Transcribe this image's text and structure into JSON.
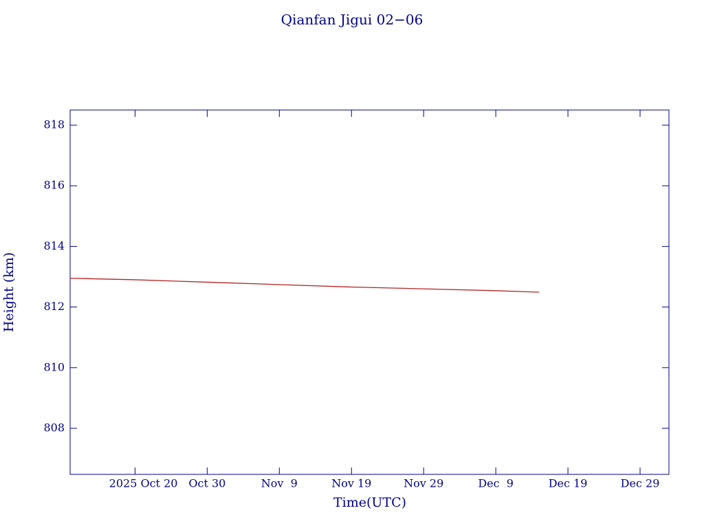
{
  "chart_data": {
    "type": "line",
    "title": "Qianfan Jigui 02−06",
    "x_label": "Time(UTC)",
    "y_label": "Height (km)",
    "x": [
      "2025-10-11",
      "2025-10-20",
      "2025-10-30",
      "2025-11-09",
      "2025-11-19",
      "2025-11-29",
      "2025-12-09",
      "2025-12-15"
    ],
    "series": [
      {
        "name": "Height",
        "color": "#b22222",
        "values": [
          812.95,
          812.9,
          812.82,
          812.74,
          812.66,
          812.6,
          812.54,
          812.49
        ]
      }
    ],
    "xlim": [
      "2025-10-11",
      "2026-01-02"
    ],
    "xticks": [
      {
        "value": "2025-10-20",
        "label": "2025 Oct 20"
      },
      {
        "value": "2025-10-30",
        "label": "Oct 30"
      },
      {
        "value": "2025-11-09",
        "label": "Nov  9"
      },
      {
        "value": "2025-11-19",
        "label": "Nov 19"
      },
      {
        "value": "2025-11-29",
        "label": "Nov 29"
      },
      {
        "value": "2025-12-09",
        "label": "Dec  9"
      },
      {
        "value": "2025-12-19",
        "label": "Dec 19"
      },
      {
        "value": "2025-12-29",
        "label": "Dec 29"
      }
    ],
    "ylim": [
      806.48,
      818.5
    ],
    "yticks": [
      808,
      810,
      812,
      814,
      816,
      818
    ],
    "axis_color": "#00008b"
  }
}
